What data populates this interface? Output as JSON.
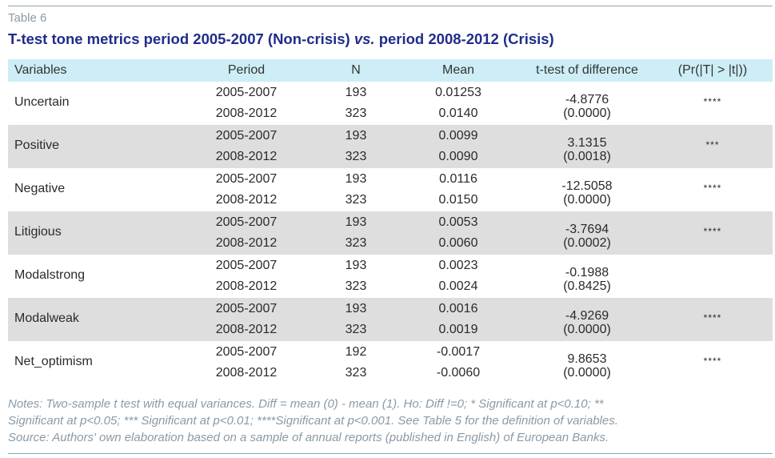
{
  "table_number": "Table 6",
  "title": {
    "part1": "T-test tone metrics period 2005-2007 (Non-crisis) ",
    "vs": "vs.",
    "part2": " period 2008-2012 (Crisis)"
  },
  "headers": {
    "variables": "Variables",
    "period": "Period",
    "n": "N",
    "mean": "Mean",
    "ttest": "t-test of difference",
    "pr": "(Pr(|T| > |t|))"
  },
  "rows": [
    {
      "variable": "Uncertain",
      "period1": "2005-2007",
      "n1": "193",
      "mean1": "0.01253",
      "period2": "2008-2012",
      "n2": "323",
      "mean2": "0.0140",
      "t": "-4.8776",
      "p": "(0.0000)",
      "sig": "****"
    },
    {
      "variable": "Positive",
      "period1": "2005-2007",
      "n1": "193",
      "mean1": "0.0099",
      "period2": "2008-2012",
      "n2": "323",
      "mean2": "0.0090",
      "t": "3.1315",
      "p": "(0.0018)",
      "sig": "***"
    },
    {
      "variable": "Negative",
      "period1": "2005-2007",
      "n1": "193",
      "mean1": "0.0116",
      "period2": "2008-2012",
      "n2": "323",
      "mean2": "0.0150",
      "t": "-12.5058",
      "p": "(0.0000)",
      "sig": "****"
    },
    {
      "variable": "Litigious",
      "period1": "2005-2007",
      "n1": "193",
      "mean1": "0.0053",
      "period2": "2008-2012",
      "n2": "323",
      "mean2": "0.0060",
      "t": "-3.7694",
      "p": "(0.0002)",
      "sig": "****"
    },
    {
      "variable": "Modalstrong",
      "period1": "2005-2007",
      "n1": "193",
      "mean1": "0.0023",
      "period2": "2008-2012",
      "n2": "323",
      "mean2": "0.0024",
      "t": "-0.1988",
      "p": "(0.8425)",
      "sig": ""
    },
    {
      "variable": "Modalweak",
      "period1": "2005-2007",
      "n1": "193",
      "mean1": "0.0016",
      "period2": "2008-2012",
      "n2": "323",
      "mean2": "0.0019",
      "t": "-4.9269",
      "p": "(0.0000)",
      "sig": "****"
    },
    {
      "variable": "Net_optimism",
      "period1": "2005-2007",
      "n1": "192",
      "mean1": "-0.0017",
      "period2": "2008-2012",
      "n2": "323",
      "mean2": "-0.0060",
      "t": "9.8653",
      "p": "(0.0000)",
      "sig": "****"
    }
  ],
  "notes": {
    "line1": "Notes: Two-sample t test with equal variances. Diff = mean (0) - mean (1). Ho: Diff !=0; * Significant at p<0.10; **",
    "line2": "Significant at p<0.05; *** Significant at p<0.01; ****Significant at p<0.001. See Table 5 for the definition of variables.",
    "source": "Source: Authors' own elaboration based on a sample of annual reports (published in English) of European Banks."
  },
  "colors": {
    "title": "#1f2d8a",
    "header_bg": "#cdeef6",
    "shade_bg": "#dedede",
    "muted_text": "#8a9aa6"
  }
}
